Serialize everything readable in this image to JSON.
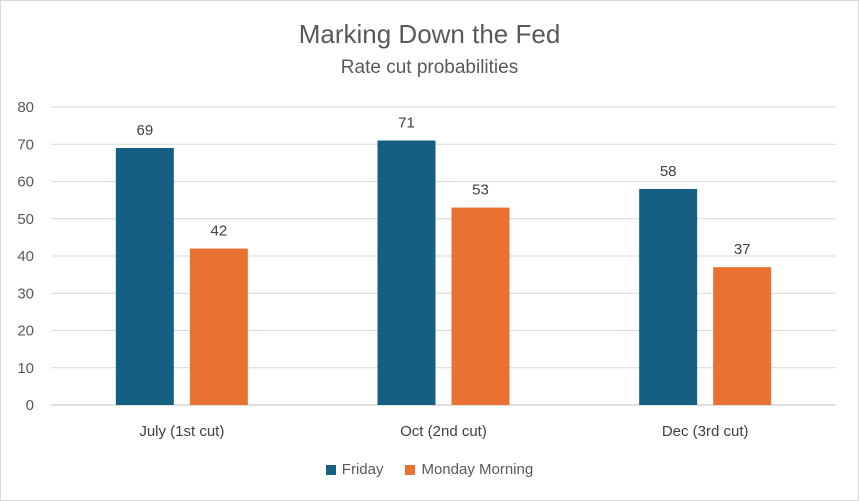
{
  "chart_data": {
    "type": "bar",
    "title": "Marking Down the Fed",
    "subtitle": "Rate cut probabilities",
    "categories": [
      "July (1st cut)",
      "Oct (2nd cut)",
      "Dec (3rd cut)"
    ],
    "series": [
      {
        "name": "Friday",
        "values": [
          69,
          71,
          58
        ],
        "color": "#156082"
      },
      {
        "name": "Monday Morning",
        "values": [
          42,
          53,
          37
        ],
        "color": "#E97132"
      }
    ],
    "ylim": [
      0,
      80
    ],
    "yticks": [
      0,
      10,
      20,
      30,
      40,
      50,
      60,
      70,
      80
    ],
    "xlabel": "",
    "ylabel": "",
    "grid": true,
    "legend_position": "bottom",
    "data_labels": true
  }
}
